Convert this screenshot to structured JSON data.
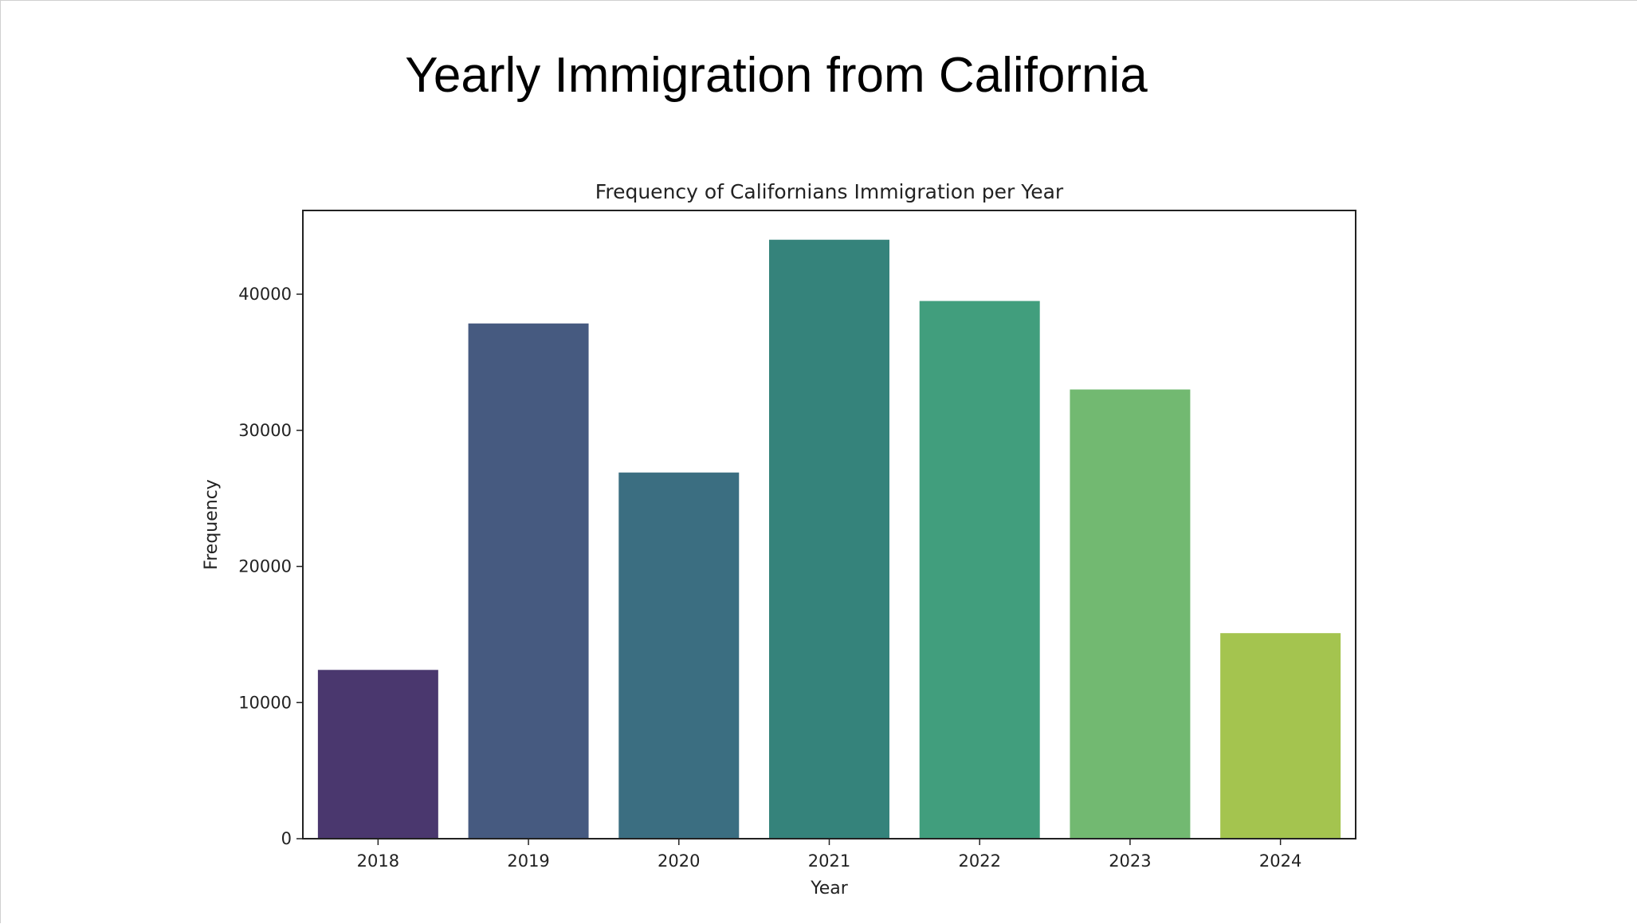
{
  "slide": {
    "title": "Yearly Immigration from California"
  },
  "chart_data": {
    "type": "bar",
    "title": "Frequency of Californians Immigration per Year",
    "xlabel": "Year",
    "ylabel": "Frequency",
    "categories": [
      "2018",
      "2019",
      "2020",
      "2021",
      "2022",
      "2023",
      "2024"
    ],
    "values": [
      12400,
      37850,
      26900,
      44000,
      39500,
      33000,
      15100
    ],
    "colors": [
      "#4a376e",
      "#465a80",
      "#3b6e81",
      "#35837b",
      "#419e7d",
      "#72b971",
      "#a4c44f"
    ],
    "ylim": [
      0,
      46150
    ],
    "yticks": [
      0,
      10000,
      20000,
      30000,
      40000
    ],
    "ytick_labels": [
      "0",
      "10000",
      "20000",
      "30000",
      "40000"
    ],
    "grid": false
  }
}
